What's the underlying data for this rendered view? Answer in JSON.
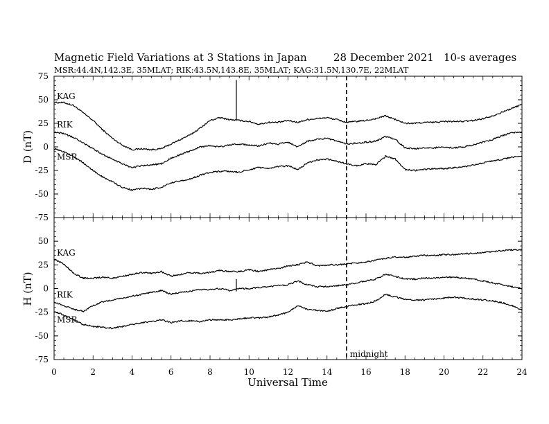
{
  "header": {
    "title": "Magnetic Field Variations at 3 Stations in Japan",
    "date": "28 December 2021",
    "averaging": "10-s averages",
    "stations_line": "MSR:44.4N,142.3E, 35MLAT;  RIK:43.5N,143.8E, 35MLAT;  KAG:31.5N,130.7E, 22MLAT"
  },
  "colors": {
    "line": "#000000",
    "background": "#ffffff"
  },
  "chart_data": [
    {
      "type": "line",
      "panel": "top",
      "ylabel": "D (nT)",
      "xlabel": "",
      "xlim": [
        0,
        24
      ],
      "ylim": [
        -75,
        75
      ],
      "yticks": [
        "75",
        "50",
        "25",
        "0",
        "-25",
        "-50",
        "-75"
      ],
      "annotations": [
        {
          "type": "vertical-spike",
          "series": "KAG",
          "x": 9.35,
          "y_top": 71,
          "y_bottom": 28
        }
      ],
      "series": [
        {
          "name": "KAG",
          "x": [
            0,
            0.5,
            1,
            1.5,
            2,
            2.5,
            3,
            3.5,
            4,
            4.5,
            5,
            5.5,
            6,
            6.5,
            7,
            7.5,
            8,
            8.5,
            9,
            9.5,
            10,
            10.5,
            11,
            11.5,
            12,
            12.5,
            13,
            13.5,
            14,
            14.5,
            15,
            15.5,
            16,
            16.5,
            17,
            17.5,
            18,
            18.5,
            19,
            19.5,
            20,
            20.5,
            21,
            21.5,
            22,
            22.5,
            23,
            23.5,
            24
          ],
          "values": [
            47,
            47,
            44,
            36,
            28,
            18,
            9,
            2,
            -3,
            -2,
            -3,
            -2,
            3,
            8,
            13,
            20,
            28,
            31,
            29,
            28,
            27,
            24,
            26,
            26,
            28,
            26,
            29,
            30,
            31,
            29,
            26,
            27,
            28,
            30,
            33,
            29,
            25,
            25,
            26,
            26,
            27,
            27,
            27,
            28,
            30,
            33,
            37,
            41,
            45
          ]
        },
        {
          "name": "RIK",
          "x": [
            0,
            0.5,
            1,
            1.5,
            2,
            2.5,
            3,
            3.5,
            4,
            4.5,
            5,
            5.5,
            6,
            6.5,
            7,
            7.5,
            8,
            8.5,
            9,
            9.5,
            10,
            10.5,
            11,
            11.5,
            12,
            12.5,
            13,
            13.5,
            14,
            14.5,
            15,
            15.5,
            16,
            16.5,
            17,
            17.5,
            18,
            18.5,
            19,
            19.5,
            20,
            20.5,
            21,
            21.5,
            22,
            22.5,
            23,
            23.5,
            24
          ],
          "values": [
            16,
            14,
            10,
            4,
            -2,
            -8,
            -13,
            -18,
            -22,
            -20,
            -19,
            -18,
            -12,
            -8,
            -4,
            0,
            1,
            0,
            2,
            3,
            2,
            1,
            4,
            3,
            5,
            0,
            6,
            8,
            9,
            6,
            3,
            4,
            5,
            6,
            11,
            8,
            -1,
            -2,
            -1,
            -1,
            0,
            -1,
            0,
            2,
            5,
            8,
            12,
            15,
            16
          ]
        },
        {
          "name": "MSR",
          "x": [
            0,
            0.5,
            1,
            1.5,
            2,
            2.5,
            3,
            3.5,
            4,
            4.5,
            5,
            5.5,
            6,
            6.5,
            7,
            7.5,
            8,
            8.5,
            9,
            9.5,
            10,
            10.5,
            11,
            11.5,
            12,
            12.5,
            13,
            13.5,
            14,
            14.5,
            15,
            15.5,
            16,
            16.5,
            17,
            17.5,
            18,
            18.5,
            19,
            19.5,
            20,
            20.5,
            21,
            21.5,
            22,
            22.5,
            23,
            23.5,
            24
          ],
          "values": [
            -2,
            -5,
            -10,
            -17,
            -25,
            -32,
            -37,
            -43,
            -46,
            -44,
            -45,
            -43,
            -38,
            -36,
            -34,
            -30,
            -27,
            -26,
            -26,
            -27,
            -24,
            -22,
            -23,
            -21,
            -20,
            -24,
            -17,
            -14,
            -13,
            -15,
            -18,
            -20,
            -18,
            -19,
            -10,
            -13,
            -24,
            -25,
            -24,
            -23,
            -23,
            -22,
            -21,
            -19,
            -17,
            -15,
            -13,
            -11,
            -10
          ]
        }
      ]
    },
    {
      "type": "line",
      "panel": "bottom",
      "ylabel": "H (nT)",
      "xlabel": "Universal Time",
      "xlim": [
        0,
        24
      ],
      "ylim": [
        -75,
        75
      ],
      "xticks": [
        "0",
        "2",
        "4",
        "6",
        "8",
        "10",
        "12",
        "14",
        "16",
        "18",
        "20",
        "22",
        "24"
      ],
      "yticks": [
        "50",
        "25",
        "0",
        "-25",
        "-50",
        "-75"
      ],
      "annotations": [
        {
          "type": "vertical-dashed-line",
          "x": 15,
          "label": "midnight"
        },
        {
          "type": "vertical-spike",
          "series": "RIK",
          "x": 9.35,
          "y_top": 10,
          "y_bottom": -3
        }
      ],
      "series": [
        {
          "name": "KAG",
          "x": [
            0,
            0.5,
            1,
            1.5,
            2,
            2.5,
            3,
            3.5,
            4,
            4.5,
            5,
            5.5,
            6,
            6.5,
            7,
            7.5,
            8,
            8.5,
            9,
            9.5,
            10,
            10.5,
            11,
            11.5,
            12,
            12.5,
            13,
            13.5,
            14,
            14.5,
            15,
            15.5,
            16,
            16.5,
            17,
            17.5,
            18,
            18.5,
            19,
            19.5,
            20,
            20.5,
            21,
            21.5,
            22,
            22.5,
            23,
            23.5,
            24
          ],
          "values": [
            31,
            26,
            16,
            11,
            11,
            12,
            11,
            13,
            15,
            17,
            16,
            18,
            13,
            15,
            17,
            16,
            17,
            19,
            18,
            18,
            20,
            18,
            20,
            21,
            24,
            25,
            28,
            24,
            25,
            25,
            26,
            27,
            28,
            30,
            32,
            33,
            33,
            34,
            35,
            35,
            36,
            36,
            37,
            37,
            38,
            39,
            40,
            41,
            41
          ]
        },
        {
          "name": "RIK",
          "x": [
            0,
            0.5,
            1,
            1.5,
            2,
            2.5,
            3,
            3.5,
            4,
            4.5,
            5,
            5.5,
            6,
            6.5,
            7,
            7.5,
            8,
            8.5,
            9,
            9.5,
            10,
            10.5,
            11,
            11.5,
            12,
            12.5,
            13,
            13.5,
            14,
            14.5,
            15,
            15.5,
            16,
            16.5,
            17,
            17.5,
            18,
            18.5,
            19,
            19.5,
            20,
            20.5,
            21,
            21.5,
            22,
            22.5,
            23,
            23.5,
            24
          ],
          "values": [
            -14,
            -18,
            -22,
            -24,
            -18,
            -14,
            -12,
            -10,
            -8,
            -6,
            -4,
            -2,
            -6,
            -4,
            -3,
            -1,
            -1,
            0,
            -2,
            0,
            0,
            1,
            2,
            3,
            4,
            8,
            4,
            2,
            2,
            3,
            4,
            6,
            8,
            10,
            15,
            13,
            10,
            10,
            11,
            11,
            12,
            12,
            11,
            10,
            8,
            6,
            4,
            2,
            0
          ]
        },
        {
          "name": "MSR",
          "x": [
            0,
            0.5,
            1,
            1.5,
            2,
            2.5,
            3,
            3.5,
            4,
            4.5,
            5,
            5.5,
            6,
            6.5,
            7,
            7.5,
            8,
            8.5,
            9,
            9.5,
            10,
            10.5,
            11,
            11.5,
            12,
            12.5,
            13,
            13.5,
            14,
            14.5,
            15,
            15.5,
            16,
            16.5,
            17,
            17.5,
            18,
            18.5,
            19,
            19.5,
            20,
            20.5,
            21,
            21.5,
            22,
            22.5,
            23,
            23.5,
            24
          ],
          "values": [
            -24,
            -28,
            -33,
            -38,
            -40,
            -41,
            -42,
            -40,
            -38,
            -36,
            -35,
            -33,
            -36,
            -34,
            -34,
            -35,
            -33,
            -33,
            -33,
            -32,
            -31,
            -31,
            -30,
            -28,
            -25,
            -18,
            -22,
            -23,
            -24,
            -21,
            -19,
            -17,
            -16,
            -13,
            -6,
            -9,
            -11,
            -12,
            -12,
            -11,
            -10,
            -9,
            -10,
            -11,
            -12,
            -13,
            -15,
            -18,
            -23
          ]
        }
      ]
    }
  ]
}
